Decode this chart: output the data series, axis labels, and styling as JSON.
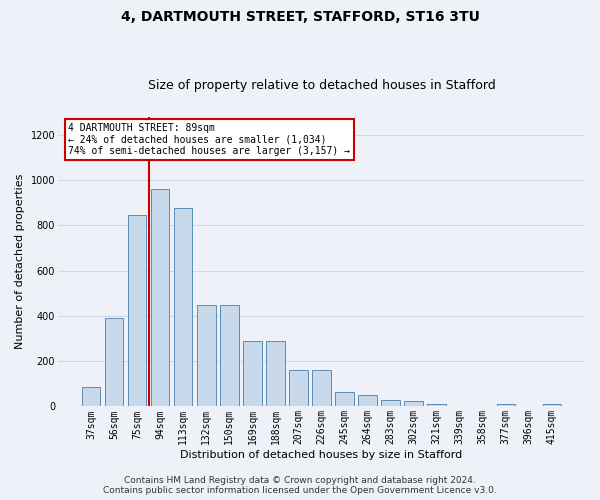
{
  "title": "4, DARTMOUTH STREET, STAFFORD, ST16 3TU",
  "subtitle": "Size of property relative to detached houses in Stafford",
  "xlabel": "Distribution of detached houses by size in Stafford",
  "ylabel": "Number of detached properties",
  "categories": [
    "37sqm",
    "56sqm",
    "75sqm",
    "94sqm",
    "113sqm",
    "132sqm",
    "150sqm",
    "169sqm",
    "188sqm",
    "207sqm",
    "226sqm",
    "245sqm",
    "264sqm",
    "283sqm",
    "302sqm",
    "321sqm",
    "339sqm",
    "358sqm",
    "377sqm",
    "396sqm",
    "415sqm"
  ],
  "values": [
    85,
    390,
    845,
    960,
    875,
    450,
    450,
    290,
    290,
    160,
    160,
    65,
    50,
    30,
    25,
    10,
    0,
    0,
    10,
    0,
    10
  ],
  "bar_color": "#c9d9ec",
  "bar_edge_color": "#5b8db8",
  "grid_color": "#d0d8e8",
  "background_color": "#eef2f8",
  "vline_x": 2.5,
  "vline_color": "#cc0000",
  "annotation_text": "4 DARTMOUTH STREET: 89sqm\n← 24% of detached houses are smaller (1,034)\n74% of semi-detached houses are larger (3,157) →",
  "annotation_box_edgecolor": "#cc0000",
  "annotation_box_facecolor": "#ffffff",
  "footnote": "Contains HM Land Registry data © Crown copyright and database right 2024.\nContains public sector information licensed under the Open Government Licence v3.0.",
  "ylim": [
    0,
    1280
  ],
  "yticks": [
    0,
    200,
    400,
    600,
    800,
    1000,
    1200
  ],
  "title_fontsize": 10,
  "subtitle_fontsize": 9,
  "xlabel_fontsize": 8,
  "ylabel_fontsize": 8,
  "tick_fontsize": 7,
  "annotation_fontsize": 7,
  "footnote_fontsize": 6.5
}
